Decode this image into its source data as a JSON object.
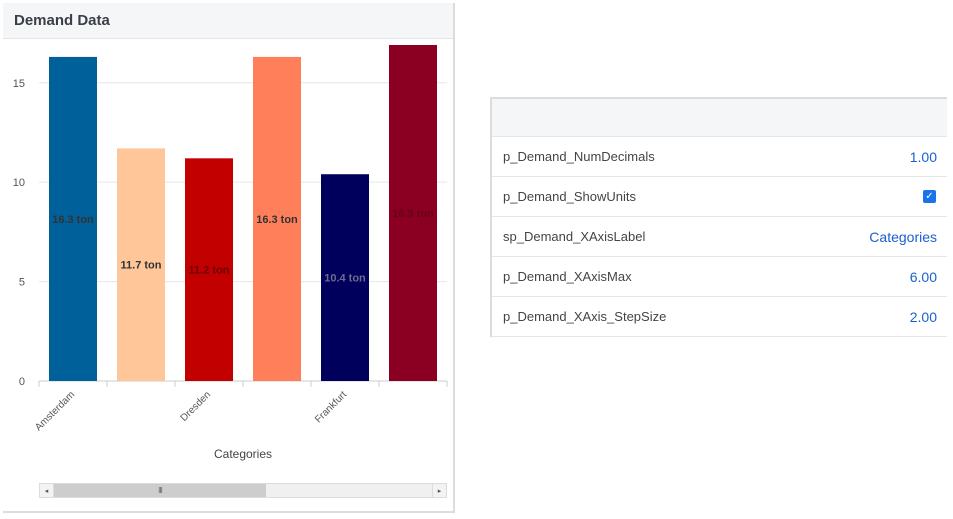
{
  "widget": {
    "title": "Demand Data",
    "scroll_thumb_grip": "III",
    "scroll_left": "◂",
    "scroll_right": "▸"
  },
  "chart_data": {
    "type": "bar",
    "categories": [
      "Amsterdam",
      "",
      "Dresden",
      "",
      "Frankfurt",
      ""
    ],
    "values": [
      16.3,
      11.7,
      11.2,
      16.3,
      10.4,
      16.9
    ],
    "data_labels": [
      "16.3 ton",
      "11.7 ton",
      "11.2 ton",
      "16.3 ton",
      "10.4 ton",
      "16.9 ton"
    ],
    "colors": [
      "#00609a",
      "#ffc69a",
      "#c20000",
      "#ff7f5a",
      "#00005c",
      "#8b0022"
    ],
    "label_colors": [
      "#333333",
      "#333333",
      "#6a0000",
      "#333333",
      "#6b6b8f",
      "#6a0018"
    ],
    "xlabel": "Categories",
    "ylabel": "",
    "yticks": [
      0,
      5,
      10,
      15
    ],
    "ylim": [
      0,
      17
    ],
    "grid": true
  },
  "params": {
    "rows": [
      {
        "name": "p_Demand_NumDecimals",
        "value": "1.00"
      },
      {
        "name": "p_Demand_ShowUnits",
        "value": "",
        "checked": "✓"
      },
      {
        "name": "sp_Demand_XAxisLabel",
        "value": "Categories"
      },
      {
        "name": "p_Demand_XAxisMax",
        "value": "6.00"
      },
      {
        "name": "p_Demand_XAxis_StepSize",
        "value": "2.00"
      }
    ]
  }
}
